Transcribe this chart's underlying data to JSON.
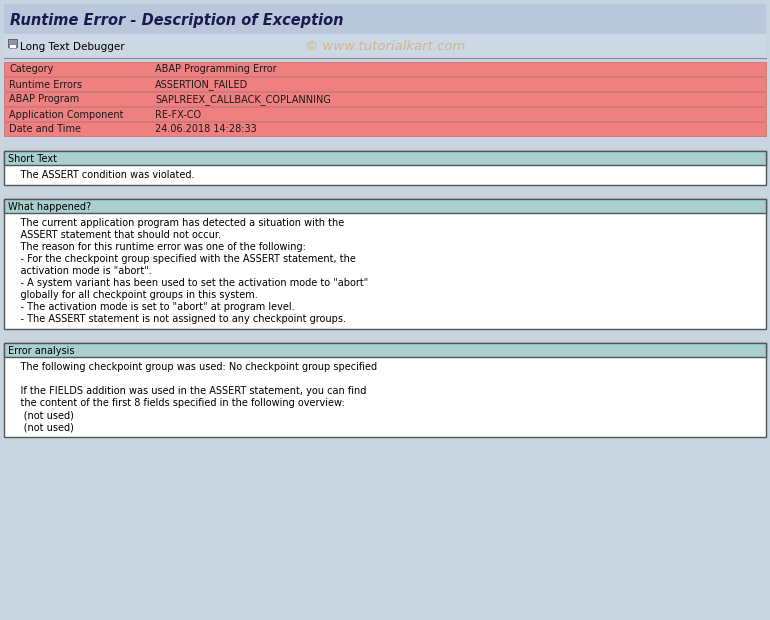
{
  "title": "Runtime Error - Description of Exception",
  "toolbar_items": [
    "Long Text",
    "Debugger"
  ],
  "watermark": "© www.tutorialkart.com",
  "table_rows": [
    {
      "label": "Category",
      "value": "ABAP Programming Error"
    },
    {
      "label": "Runtime Errors",
      "value": "ASSERTION_FAILED"
    },
    {
      "label": "ABAP Program",
      "value": "SAPLREEX_CALLBACK_COPLANNING"
    },
    {
      "label": "Application Component",
      "value": "RE-FX-CO"
    },
    {
      "label": "Date and Time",
      "value": "24.06.2018 14:28:33"
    }
  ],
  "table_row_color": "#f08080",
  "table_border_color": "#cc6666",
  "section_header_color": "#a8d0d0",
  "background_color": "#c8d4e0",
  "title_bg_color": "#b8c8da",
  "toolbar_bg_color": "#ccd8e4",
  "short_text_header": "Short Text",
  "short_text_body": "    The ASSERT condition was violated.",
  "what_happened_header": "What happened?",
  "what_happened_lines": [
    "    The current application program has detected a situation with the",
    "    ASSERT statement that should not occur.",
    "    The reason for this runtime error was one of the following:",
    "    - For the checkpoint group specified with the ASSERT statement, the",
    "    activation mode is \"abort\".",
    "    - A system variant has been used to set the activation mode to \"abort\"",
    "    globally for all checkpoint groups in this system.",
    "    - The activation mode is set to \"abort\" at program level.",
    "    - The ASSERT statement is not assigned to any checkpoint groups."
  ],
  "error_analysis_header": "Error analysis",
  "error_analysis_lines": [
    "    The following checkpoint group was used: No checkpoint group specified",
    "",
    "    If the FIELDS addition was used in the ASSERT statement, you can find",
    "    the content of the first 8 fields specified in the following overview:",
    "     (not used)",
    "     (not used)"
  ],
  "font_size_title": 10.5,
  "font_size_body": 7.0,
  "font_size_header": 7.0,
  "font_size_toolbar": 7.5,
  "font_size_watermark": 9.5
}
